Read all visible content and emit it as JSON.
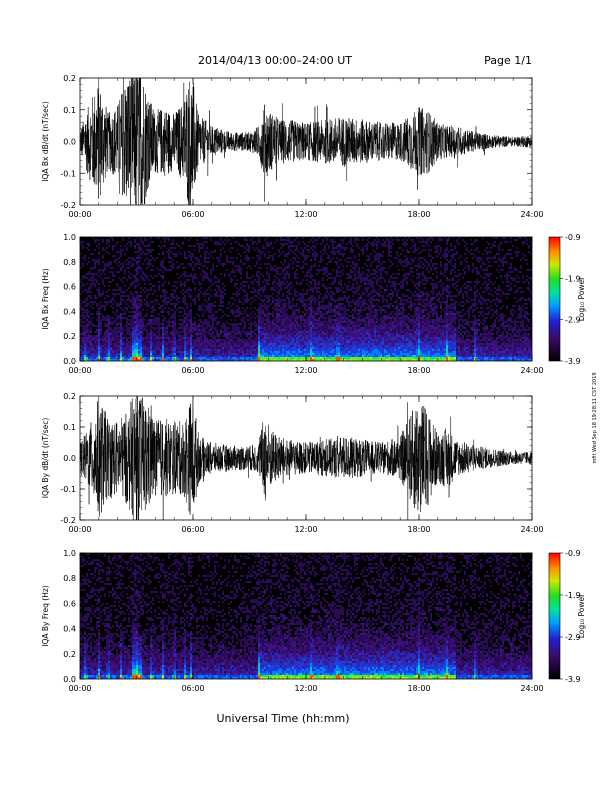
{
  "header": {
    "title": "2014/04/13  00:00–24:00 UT",
    "page": "Page 1/1"
  },
  "x_axis_title": "Universal Time (hh:mm)",
  "side_stamp": "mfit Wed Sep 18 19:28:11 CST 2019",
  "chart_data": [
    {
      "type": "line",
      "ylabel": "IQA Bx dB/dt (nT/sec)",
      "xlim": [
        "00:00",
        "24:00"
      ],
      "ylim": [
        -0.2,
        0.2
      ],
      "xticks": [
        "00:00",
        "06:00",
        "12:00",
        "18:00",
        "24:00"
      ],
      "yticks": [
        "-0.2",
        "-0.1",
        "0.0",
        "0.1",
        "0.2"
      ],
      "envelope": {
        "hours": [
          0,
          0.5,
          1,
          1.5,
          2,
          2.5,
          2.8,
          3,
          3.3,
          3.6,
          4,
          4.5,
          5,
          5.5,
          5.8,
          6,
          6.3,
          6.6,
          7,
          8,
          9,
          9.5,
          9.8,
          10.2,
          10.6,
          11,
          12,
          13,
          14,
          15,
          16,
          17,
          18,
          18.5,
          19,
          19.5,
          20,
          21,
          22,
          23,
          24
        ],
        "amplitude": [
          0.04,
          0.12,
          0.2,
          0.09,
          0.12,
          0.22,
          0.22,
          0.25,
          0.25,
          0.15,
          0.1,
          0.11,
          0.09,
          0.13,
          0.22,
          0.2,
          0.08,
          0.07,
          0.05,
          0.03,
          0.03,
          0.05,
          0.12,
          0.09,
          0.07,
          0.07,
          0.06,
          0.07,
          0.08,
          0.07,
          0.06,
          0.06,
          0.11,
          0.1,
          0.06,
          0.05,
          0.05,
          0.03,
          0.02,
          0.015,
          0.02
        ]
      }
    },
    {
      "type": "heatmap",
      "ylabel": "IQA Bx Freq (Hz)",
      "xlim": [
        "00:00",
        "24:00"
      ],
      "ylim": [
        0.0,
        1.0
      ],
      "xticks": [
        "00:00",
        "06:00",
        "12:00",
        "18:00",
        "24:00"
      ],
      "yticks": [
        "0.0",
        "0.2",
        "0.4",
        "0.6",
        "0.8",
        "1.0"
      ],
      "colorbar": {
        "label": "Log₁₀ Power",
        "range": [
          -3.9,
          -0.9
        ],
        "ticks": [
          "-0.9",
          "-1.9",
          "-2.9",
          "-3.9"
        ]
      }
    },
    {
      "type": "line",
      "ylabel": "IQA By dB/dt (nT/sec)",
      "xlim": [
        "00:00",
        "24:00"
      ],
      "ylim": [
        -0.2,
        0.2
      ],
      "xticks": [
        "00:00",
        "06:00",
        "12:00",
        "18:00",
        "24:00"
      ],
      "yticks": [
        "-0.2",
        "-0.1",
        "0.0",
        "0.1",
        "0.2"
      ],
      "envelope": {
        "hours": [
          0,
          0.5,
          1,
          1.5,
          2,
          2.5,
          2.8,
          3,
          3.3,
          3.6,
          4,
          4.5,
          5,
          5.5,
          5.8,
          6,
          6.3,
          6.6,
          7,
          8,
          9,
          9.5,
          9.8,
          10.2,
          10.6,
          11,
          12,
          13,
          14,
          15,
          16,
          17,
          18,
          18.5,
          19,
          19.5,
          20,
          21,
          22,
          23,
          24
        ],
        "amplitude": [
          0.05,
          0.1,
          0.2,
          0.13,
          0.12,
          0.15,
          0.2,
          0.22,
          0.2,
          0.18,
          0.12,
          0.13,
          0.12,
          0.12,
          0.18,
          0.2,
          0.08,
          0.06,
          0.05,
          0.04,
          0.04,
          0.05,
          0.15,
          0.09,
          0.07,
          0.06,
          0.05,
          0.06,
          0.07,
          0.06,
          0.05,
          0.07,
          0.2,
          0.15,
          0.08,
          0.1,
          0.06,
          0.04,
          0.03,
          0.02,
          0.02
        ]
      }
    },
    {
      "type": "heatmap",
      "ylabel": "IQA By Freq (Hz)",
      "xlim": [
        "00:00",
        "24:00"
      ],
      "ylim": [
        0.0,
        1.0
      ],
      "xticks": [
        "00:00",
        "06:00",
        "12:00",
        "18:00",
        "24:00"
      ],
      "yticks": [
        "0.0",
        "0.2",
        "0.4",
        "0.6",
        "0.8",
        "1.0"
      ],
      "colorbar": {
        "label": "Log₁₀ Power",
        "range": [
          -3.9,
          -0.9
        ],
        "ticks": [
          "-0.9",
          "-1.9",
          "-2.9",
          "-3.9"
        ]
      }
    }
  ]
}
